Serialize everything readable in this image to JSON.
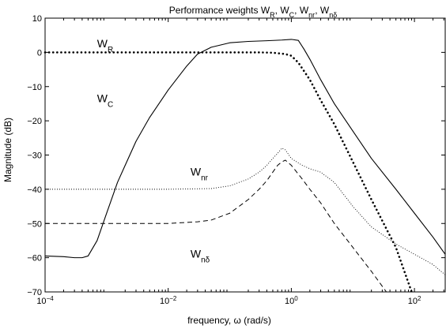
{
  "chart_data": {
    "type": "line",
    "title": "Performance weights W_R, W_C, W_nr, W_nδ",
    "title_parts": {
      "prefix": "Performance weights W",
      "r_sub": "R",
      "c_prefix": ", W",
      "c_sub": "C",
      "nr_prefix": ", W",
      "nr_sub": "nr",
      "nd_prefix": ", W",
      "nd_sub": "nδ"
    },
    "xlabel": "frequency, ω (rad/s)",
    "ylabel": "Magnitude (dB)",
    "x_scale": "log",
    "xlim": [
      0.0001,
      316
    ],
    "ylim": [
      -70,
      10
    ],
    "x_ticks": [
      0.0001,
      0.01,
      1,
      100
    ],
    "x_tick_labels": [
      {
        "base": "10",
        "exp": "−4"
      },
      {
        "base": "10",
        "exp": "−2"
      },
      {
        "base": "10",
        "exp": "0"
      },
      {
        "base": "10",
        "exp": "2"
      }
    ],
    "y_ticks": [
      10,
      0,
      -10,
      -20,
      -30,
      -40,
      -50,
      -60,
      -70
    ],
    "y_tick_labels": [
      "10",
      "0",
      "−10",
      "−20",
      "−30",
      "−40",
      "−50",
      "−60",
      "−70"
    ],
    "grid": false,
    "series": [
      {
        "id": "WR",
        "style": "dotted-thick",
        "color": "#000000",
        "x": [
          0.0001,
          0.001,
          0.01,
          0.1,
          0.3,
          0.5,
          0.8,
          1.0,
          1.3,
          2,
          3,
          5,
          10,
          20,
          50,
          90
        ],
        "y": [
          0,
          0,
          0,
          0,
          0,
          -0.1,
          -0.5,
          -1,
          -3,
          -8,
          -14,
          -21,
          -32,
          -43,
          -57,
          -70
        ]
      },
      {
        "id": "WC",
        "style": "solid",
        "color": "#000000",
        "x": [
          0.0001,
          0.0002,
          0.0003,
          0.0004,
          0.0005,
          0.0007,
          0.001,
          0.0015,
          0.002,
          0.003,
          0.005,
          0.01,
          0.02,
          0.03,
          0.05,
          0.1,
          0.2,
          0.4,
          0.7,
          1.0,
          1.3,
          1.6,
          2,
          3,
          5,
          10,
          20,
          50,
          100,
          200,
          316
        ],
        "y": [
          -59.5,
          -59.7,
          -60,
          -60,
          -59.5,
          -55,
          -47,
          -38,
          -33,
          -26,
          -19,
          -11,
          -4,
          -0.5,
          1.5,
          2.8,
          3.2,
          3.4,
          3.6,
          3.8,
          3.5,
          1,
          -2,
          -8,
          -15,
          -23,
          -31,
          -40,
          -47,
          -54,
          -59
        ]
      },
      {
        "id": "Wnr",
        "style": "dotted-thin",
        "color": "#000000",
        "x": [
          0.0001,
          0.001,
          0.01,
          0.05,
          0.1,
          0.2,
          0.3,
          0.4,
          0.5,
          0.6,
          0.7,
          0.8,
          1.0,
          1.5,
          2,
          3,
          5,
          10,
          20,
          50,
          100,
          200,
          316
        ],
        "y": [
          -40,
          -40,
          -40,
          -39.8,
          -39,
          -37,
          -35,
          -33,
          -31,
          -29.5,
          -28,
          -28.5,
          -31,
          -33,
          -34,
          -35,
          -38,
          -45,
          -51,
          -56,
          -59,
          -62,
          -65
        ]
      },
      {
        "id": "Wnd",
        "style": "dashed",
        "color": "#000000",
        "x": [
          0.0001,
          0.001,
          0.01,
          0.03,
          0.05,
          0.1,
          0.2,
          0.3,
          0.4,
          0.5,
          0.6,
          0.7,
          0.8,
          1.0,
          1.5,
          2,
          3,
          5,
          10,
          20,
          35
        ],
        "y": [
          -50,
          -50,
          -50,
          -49.5,
          -49,
          -47,
          -43,
          -40,
          -37.5,
          -35,
          -33,
          -32,
          -31.5,
          -33,
          -37,
          -40,
          -44,
          -50,
          -57,
          -64,
          -70
        ]
      }
    ],
    "annotations": [
      {
        "base": "W",
        "sub": "R",
        "x": 0.0007,
        "y": 1.5
      },
      {
        "base": "W",
        "sub": "C",
        "x": 0.0007,
        "y": -14.5
      },
      {
        "base": "W",
        "sub": "nr",
        "x": 0.023,
        "y": -36
      },
      {
        "base": "W",
        "sub": "nδ",
        "x": 0.023,
        "y": -60
      }
    ]
  }
}
